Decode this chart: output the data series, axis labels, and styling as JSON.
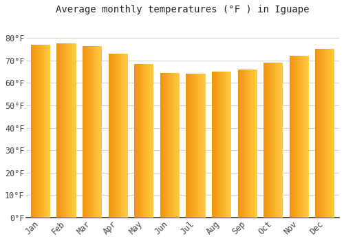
{
  "title": "Average monthly temperatures (°F ) in Iguape",
  "months": [
    "Jan",
    "Feb",
    "Mar",
    "Apr",
    "May",
    "Jun",
    "Jul",
    "Aug",
    "Sep",
    "Oct",
    "Nov",
    "Dec"
  ],
  "values": [
    77,
    77.5,
    76.5,
    73,
    68.5,
    64.5,
    64,
    65,
    66,
    69,
    72,
    75
  ],
  "bar_color_left": "#F0930A",
  "bar_color_right": "#FFCC44",
  "background_color": "#FFFFFF",
  "plot_bg_color": "#FFFFFF",
  "grid_color": "#CCCCCC",
  "ylim": [
    0,
    88
  ],
  "yticks": [
    0,
    10,
    20,
    30,
    40,
    50,
    60,
    70,
    80
  ],
  "ytick_labels": [
    "0°F",
    "10°F",
    "20°F",
    "30°F",
    "40°F",
    "50°F",
    "60°F",
    "70°F",
    "80°F"
  ],
  "title_fontsize": 10,
  "tick_fontsize": 8.5,
  "figsize": [
    5.0,
    3.5
  ],
  "dpi": 100
}
